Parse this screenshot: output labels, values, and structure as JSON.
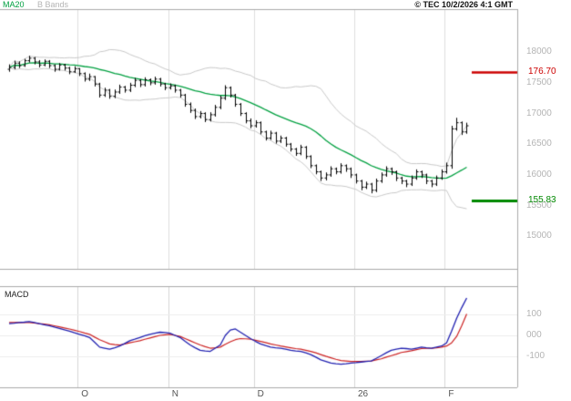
{
  "header": {
    "legend": [
      {
        "label": "MA20",
        "color": "#00a040"
      },
      {
        "label": "B Bands",
        "color": "#b4b4b4"
      }
    ],
    "copyright": "© TEC 10/2/2026 4:1 GMT"
  },
  "macd_label": "MACD",
  "chart_data": {
    "type": "ohlc",
    "title": "Daily price chart with MA20, Bollinger Bands and MACD",
    "price_axis": {
      "ticks": [
        18000,
        17500,
        17000,
        16500,
        16000,
        15500,
        15000
      ],
      "view_min": 14470,
      "view_max": 18700,
      "grid": false
    },
    "bars": [
      [
        17720,
        17800,
        17680,
        17750
      ],
      [
        17750,
        17860,
        17720,
        17820
      ],
      [
        17820,
        17850,
        17740,
        17780
      ],
      [
        17780,
        17890,
        17760,
        17860
      ],
      [
        17860,
        17940,
        17830,
        17900
      ],
      [
        17900,
        17920,
        17800,
        17840
      ],
      [
        17840,
        17870,
        17750,
        17790
      ],
      [
        17790,
        17880,
        17770,
        17850
      ],
      [
        17850,
        17870,
        17740,
        17780
      ],
      [
        17780,
        17800,
        17680,
        17720
      ],
      [
        17720,
        17820,
        17700,
        17790
      ],
      [
        17790,
        17810,
        17700,
        17740
      ],
      [
        17740,
        17760,
        17640,
        17680
      ],
      [
        17680,
        17770,
        17660,
        17730
      ],
      [
        17730,
        17740,
        17610,
        17650
      ],
      [
        17650,
        17670,
        17520,
        17560
      ],
      [
        17560,
        17650,
        17530,
        17600
      ],
      [
        17600,
        17610,
        17440,
        17480
      ],
      [
        17480,
        17500,
        17260,
        17300
      ],
      [
        17300,
        17420,
        17270,
        17380
      ],
      [
        17380,
        17400,
        17240,
        17280
      ],
      [
        17280,
        17390,
        17250,
        17350
      ],
      [
        17350,
        17470,
        17320,
        17430
      ],
      [
        17430,
        17450,
        17340,
        17380
      ],
      [
        17380,
        17500,
        17350,
        17460
      ],
      [
        17460,
        17580,
        17430,
        17540
      ],
      [
        17540,
        17560,
        17430,
        17470
      ],
      [
        17470,
        17590,
        17440,
        17550
      ],
      [
        17550,
        17570,
        17460,
        17500
      ],
      [
        17500,
        17600,
        17470,
        17560
      ],
      [
        17560,
        17580,
        17440,
        17480
      ],
      [
        17480,
        17500,
        17380,
        17420
      ],
      [
        17420,
        17490,
        17390,
        17450
      ],
      [
        17450,
        17470,
        17340,
        17380
      ],
      [
        17380,
        17400,
        17260,
        17300
      ],
      [
        17300,
        17320,
        17110,
        17150
      ],
      [
        17150,
        17180,
        17010,
        17050
      ],
      [
        17050,
        17080,
        16910,
        16950
      ],
      [
        16950,
        17040,
        16920,
        17000
      ],
      [
        17000,
        17020,
        16860,
        16900
      ],
      [
        16900,
        17020,
        16870,
        16980
      ],
      [
        16980,
        17140,
        16950,
        17100
      ],
      [
        17100,
        17290,
        17070,
        17250
      ],
      [
        17250,
        17460,
        17220,
        17420
      ],
      [
        17420,
        17440,
        17260,
        17300
      ],
      [
        17300,
        17320,
        17110,
        17150
      ],
      [
        17150,
        17170,
        16960,
        17000
      ],
      [
        17000,
        17020,
        16840,
        16880
      ],
      [
        16880,
        16920,
        16760,
        16800
      ],
      [
        16800,
        16890,
        16770,
        16850
      ],
      [
        16850,
        16870,
        16660,
        16700
      ],
      [
        16700,
        16720,
        16560,
        16600
      ],
      [
        16600,
        16720,
        16570,
        16680
      ],
      [
        16680,
        16700,
        16510,
        16550
      ],
      [
        16550,
        16640,
        16520,
        16600
      ],
      [
        16600,
        16620,
        16460,
        16500
      ],
      [
        16500,
        16520,
        16380,
        16420
      ],
      [
        16420,
        16440,
        16310,
        16350
      ],
      [
        16350,
        16490,
        16320,
        16450
      ],
      [
        16450,
        16470,
        16260,
        16300
      ],
      [
        16300,
        16320,
        16110,
        16150
      ],
      [
        16150,
        16170,
        16010,
        16050
      ],
      [
        16050,
        16070,
        15900,
        15950
      ],
      [
        15950,
        16040,
        15910,
        16000
      ],
      [
        16000,
        16140,
        15970,
        16100
      ],
      [
        16100,
        16120,
        16010,
        16050
      ],
      [
        16050,
        16190,
        16020,
        16150
      ],
      [
        16150,
        16170,
        16050,
        16100
      ],
      [
        16100,
        16120,
        15950,
        16000
      ],
      [
        16000,
        16020,
        15860,
        15900
      ],
      [
        15900,
        15920,
        15750,
        15800
      ],
      [
        15800,
        15890,
        15770,
        15850
      ],
      [
        15850,
        15870,
        15700,
        15750
      ],
      [
        15750,
        15940,
        15720,
        15900
      ],
      [
        15900,
        16040,
        15870,
        16000
      ],
      [
        16000,
        16140,
        15970,
        16100
      ],
      [
        16100,
        16120,
        16000,
        16050
      ],
      [
        16050,
        16070,
        15900,
        15950
      ],
      [
        15950,
        15970,
        15850,
        15900
      ],
      [
        15900,
        15920,
        15800,
        15850
      ],
      [
        15850,
        15990,
        15820,
        15950
      ],
      [
        15950,
        16090,
        15920,
        16050
      ],
      [
        16050,
        16070,
        15950,
        16000
      ],
      [
        16000,
        16020,
        15850,
        15900
      ],
      [
        15900,
        15920,
        15800,
        15850
      ],
      [
        15850,
        15990,
        15820,
        15950
      ],
      [
        15950,
        16090,
        15920,
        16050
      ],
      [
        16050,
        16200,
        16020,
        16150
      ],
      [
        16150,
        16800,
        16100,
        16750
      ],
      [
        16750,
        16930,
        16720,
        16850
      ],
      [
        16850,
        16870,
        16650,
        16700
      ],
      [
        16700,
        16850,
        16670,
        16800
      ]
    ],
    "indicators": {
      "ma20": {
        "label": "MA20",
        "period": 20,
        "color": "#00a040"
      },
      "bbands": {
        "label": "B Bands",
        "period": 20,
        "stddev": 2,
        "color": "#c8c8c8"
      }
    },
    "levels": [
      {
        "name": "resistance-level",
        "label": "176.70",
        "value": 17670,
        "color": "#cc0000",
        "weight": 2.5
      },
      {
        "name": "support-level",
        "label": "155.83",
        "value": 15583,
        "color": "#008800",
        "weight": 3
      }
    ],
    "macd": {
      "label": "MACD",
      "line_color": "#2020b0",
      "signal_color": "#cc2222",
      "line": [
        55,
        57,
        60,
        62,
        65,
        60,
        55,
        50,
        45,
        39,
        33,
        26,
        20,
        12,
        5,
        -2,
        -10,
        -32,
        -55,
        -60,
        -65,
        -58,
        -50,
        -38,
        -25,
        -18,
        -10,
        -2,
        5,
        10,
        15,
        13,
        10,
        0,
        -10,
        -28,
        -45,
        -58,
        -70,
        -73,
        -75,
        -60,
        -45,
        0,
        25,
        30,
        15,
        0,
        -15,
        -28,
        -40,
        -48,
        -55,
        -58,
        -60,
        -65,
        -70,
        -73,
        -75,
        -82,
        -90,
        -102,
        -115,
        -122,
        -130,
        -133,
        -135,
        -133,
        -130,
        -128,
        -125,
        -122,
        -120,
        -108,
        -95,
        -82,
        -70,
        -65,
        -60,
        -62,
        -65,
        -60,
        -55,
        -58,
        -60,
        -55,
        -50,
        -35,
        20,
        80,
        130,
        175
      ],
      "signal": [
        60,
        60,
        60,
        60,
        60,
        58,
        55,
        53,
        50,
        45,
        40,
        35,
        30,
        24,
        18,
        11,
        5,
        -8,
        -20,
        -30,
        -40,
        -43,
        -45,
        -40,
        -35,
        -30,
        -25,
        -18,
        -12,
        -6,
        0,
        3,
        5,
        0,
        -5,
        -15,
        -25,
        -35,
        -45,
        -53,
        -60,
        -58,
        -55,
        -42,
        -30,
        -20,
        -15,
        -16,
        -18,
        -23,
        -28,
        -34,
        -40,
        -45,
        -50,
        -54,
        -58,
        -62,
        -65,
        -70,
        -75,
        -82,
        -90,
        -98,
        -105,
        -112,
        -118,
        -120,
        -122,
        -122,
        -122,
        -121,
        -120,
        -115,
        -110,
        -102,
        -95,
        -88,
        -80,
        -76,
        -72,
        -67,
        -62,
        -61,
        -60,
        -58,
        -55,
        -50,
        -35,
        -5,
        45,
        100
      ]
    },
    "macd_axis": {
      "ticks": [
        {
          "v": 100,
          "label": "100"
        },
        {
          "v": 0,
          "label": "000"
        },
        {
          "v": -100,
          "label": "-100"
        }
      ]
    },
    "months": [
      {
        "label": "O",
        "index": 14
      },
      {
        "label": "N",
        "index": 32
      },
      {
        "label": "D",
        "index": 49
      },
      {
        "label": "26",
        "index": 69
      },
      {
        "label": "F",
        "index": 87
      }
    ]
  }
}
